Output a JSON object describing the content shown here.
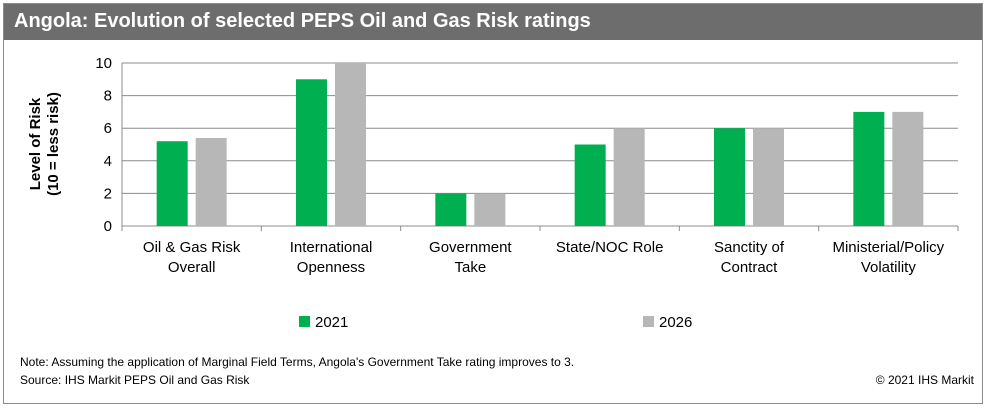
{
  "header": {
    "title": "Angola: Evolution of selected PEPS Oil and Gas Risk ratings"
  },
  "footer": {
    "note": "Note: Assuming the application of Marginal Field Terms, Angola's Government Take rating improves to 3.",
    "source": "Source: IHS Markit PEPS Oil and Gas Risk",
    "copyright": "© 2021 IHS Markit"
  },
  "chart_data": {
    "type": "bar",
    "title": "Angola: Evolution of selected PEPS Oil and Gas Risk ratings",
    "ylabel": [
      "Level of Risk",
      "(10 = less risk)"
    ],
    "xlabel": "",
    "ylim": [
      0,
      10
    ],
    "yticks": [
      0,
      2,
      4,
      6,
      8,
      10
    ],
    "grid": true,
    "legend": "bottom",
    "categories": [
      [
        "Oil & Gas Risk",
        "Overall"
      ],
      [
        "International",
        "Openness"
      ],
      [
        "Government",
        "Take"
      ],
      [
        "State/NOC Role"
      ],
      [
        "Sanctity of",
        "Contract"
      ],
      [
        "Ministerial/Policy",
        "Volatility"
      ]
    ],
    "series": [
      {
        "name": "2021",
        "color": "#00b050",
        "values": [
          5.2,
          9,
          2,
          5,
          6,
          7
        ]
      },
      {
        "name": "2026",
        "color": "#b7b7b7",
        "values": [
          5.4,
          10,
          2,
          6,
          6,
          7
        ]
      }
    ]
  }
}
